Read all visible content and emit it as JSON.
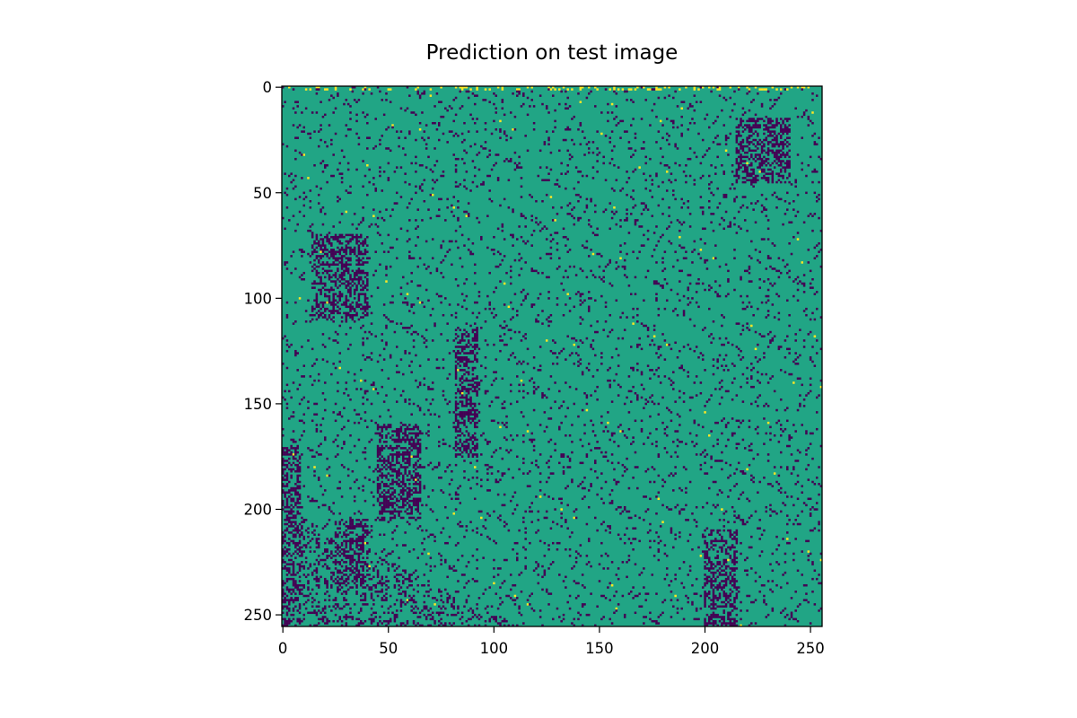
{
  "chart_data": {
    "type": "heatmap",
    "title": "Prediction on test image",
    "xlabel": "",
    "ylabel": "",
    "x_range": [
      0,
      255
    ],
    "y_range": [
      0,
      255
    ],
    "y_inverted": true,
    "grid": false,
    "legend": "none",
    "x_ticks": [
      0,
      50,
      100,
      150,
      200,
      250
    ],
    "y_ticks": [
      0,
      50,
      100,
      150,
      200,
      250
    ],
    "colormap": "viridis",
    "colors": {
      "background_class": "#21a585",
      "dark_class": "#440154",
      "bright_class": "#fde725"
    },
    "classes": [
      {
        "label_value": 0,
        "color": "#440154",
        "coverage": "sparse dotted streaks"
      },
      {
        "label_value": 1,
        "color": "#21a585",
        "coverage": "dominant"
      },
      {
        "label_value": 2,
        "color": "#fde725",
        "coverage": "rare, mostly near row 0"
      }
    ],
    "dense_dark_regions": [
      {
        "x": [
          14,
          40
        ],
        "y": [
          70,
          110
        ]
      },
      {
        "x": [
          45,
          65
        ],
        "y": [
          160,
          205
        ]
      },
      {
        "x": [
          82,
          92
        ],
        "y": [
          115,
          175
        ]
      },
      {
        "x": [
          25,
          40
        ],
        "y": [
          205,
          235
        ]
      },
      {
        "x": [
          200,
          215
        ],
        "y": [
          210,
          255
        ]
      },
      {
        "x": [
          215,
          240
        ],
        "y": [
          15,
          45
        ]
      },
      {
        "x": [
          0,
          8
        ],
        "y": [
          170,
          255
        ]
      }
    ]
  }
}
